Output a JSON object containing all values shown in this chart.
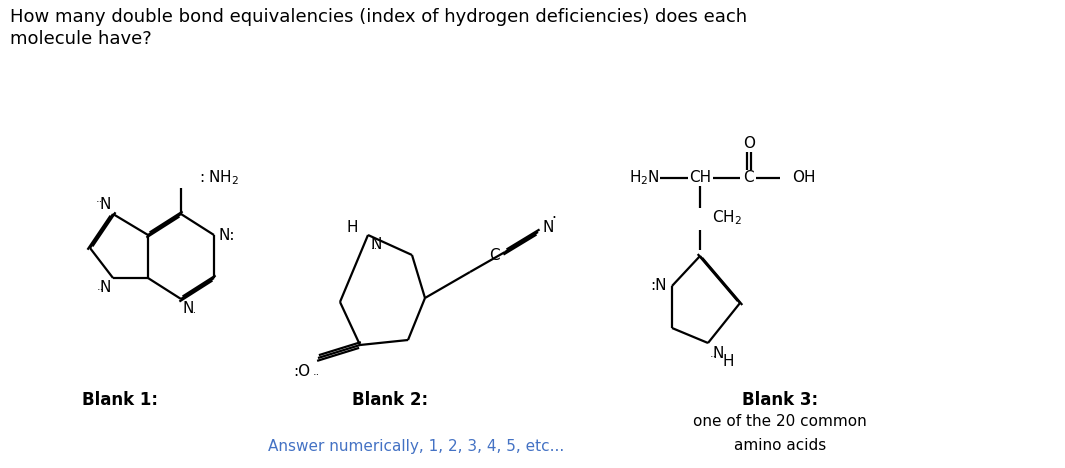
{
  "title_line1": "How many double bond equivalencies (index of hydrogen deficiencies) does each",
  "title_line2": "molecule have?",
  "answer_text": "Answer numerically, 1, 2, 3, 4, 5, etc...",
  "answer_color": "#4472c4",
  "bg_color": "#ffffff",
  "text_color": "#000000",
  "title_fontsize": 13,
  "answer_fontsize": 11
}
